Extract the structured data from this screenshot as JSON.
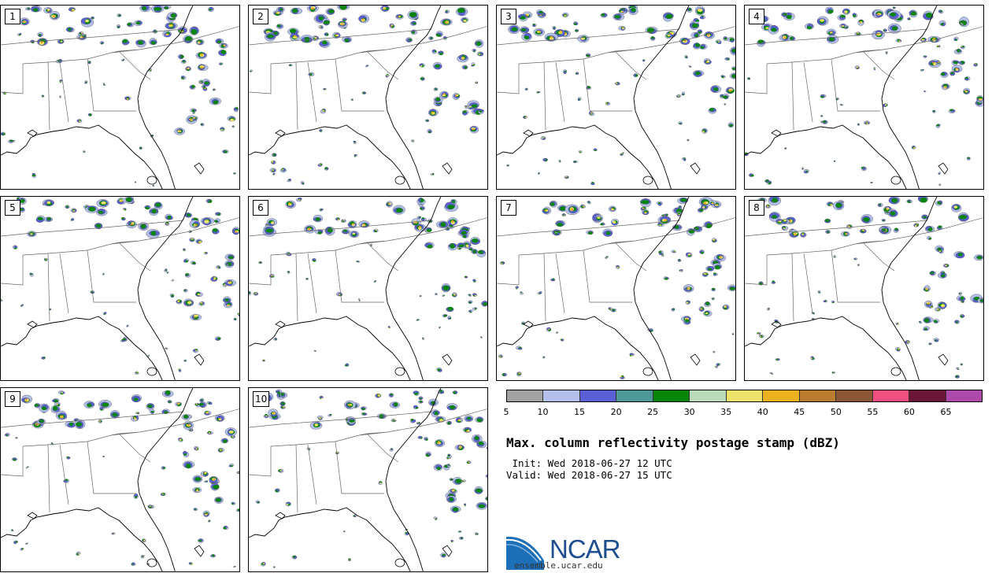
{
  "panels": [
    {
      "label": "1"
    },
    {
      "label": "2"
    },
    {
      "label": "3"
    },
    {
      "label": "4"
    },
    {
      "label": "5"
    },
    {
      "label": "6"
    },
    {
      "label": "7"
    },
    {
      "label": "8"
    },
    {
      "label": "9"
    },
    {
      "label": "10"
    }
  ],
  "colorbar": {
    "colors": [
      "#a2a2a2",
      "#b3bfe8",
      "#5a5fd6",
      "#4e9898",
      "#098509",
      "#b9dbb9",
      "#ede26a",
      "#ecb11e",
      "#ba7d2f",
      "#8b5636",
      "#ef5080",
      "#6b1636",
      "#ad49a8"
    ],
    "ticks": [
      "5",
      "10",
      "15",
      "20",
      "25",
      "30",
      "35",
      "40",
      "45",
      "50",
      "55",
      "60",
      "65"
    ]
  },
  "title": "Max. column reflectivity postage stamp (dBZ)",
  "init": " Init: Wed 2018-06-27 12 UTC",
  "valid": "Valid: Wed 2018-06-27 15 UTC",
  "logo": {
    "text": "NCAR",
    "url": "ensemble.ucar.edu",
    "colors": {
      "arc": "#1d6fb8",
      "dark": "#1d4f91"
    }
  },
  "map_colors": {
    "outline": "#000000",
    "light": "#b3bfe8",
    "blue": "#5a5fd6",
    "green": "#098509",
    "yellow": "#ede26a",
    "orange": "#ecb11e",
    "red": "#ef5080"
  }
}
